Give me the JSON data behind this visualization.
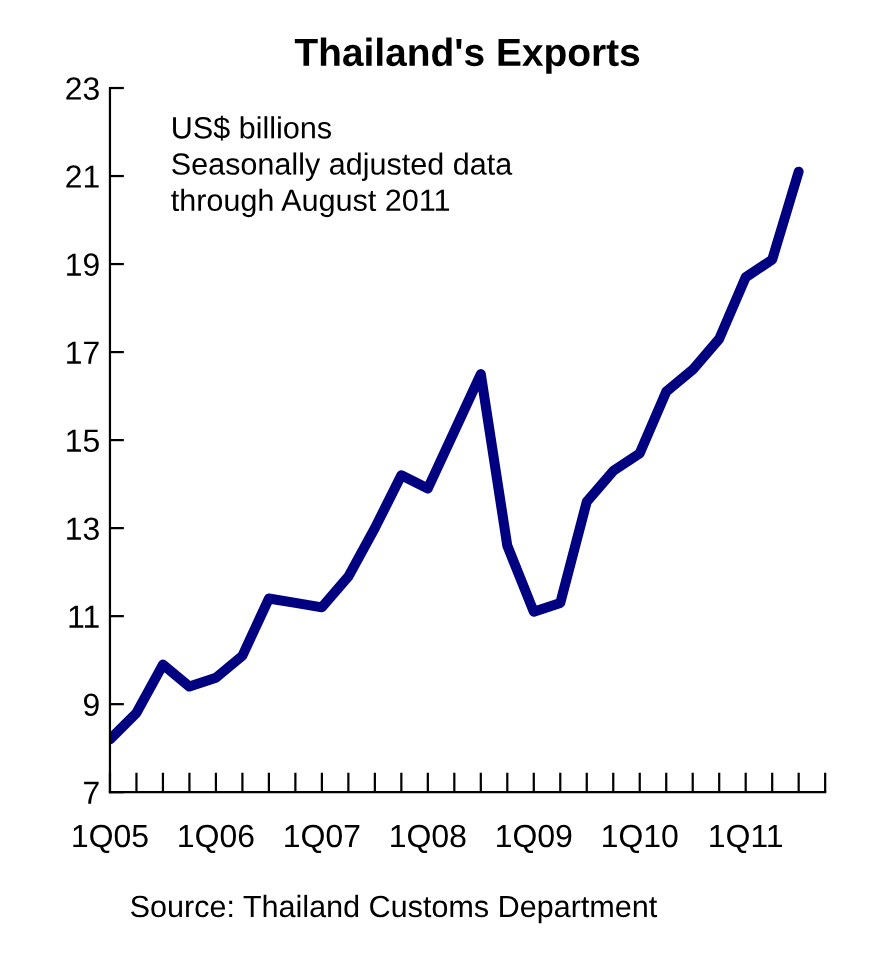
{
  "chart_data": {
    "type": "line",
    "title": "Thailand's Exports",
    "categories": [
      "1Q05",
      null,
      null,
      null,
      "1Q06",
      null,
      null,
      null,
      "1Q07",
      null,
      null,
      null,
      "1Q08",
      null,
      null,
      null,
      "1Q09",
      null,
      null,
      null,
      "1Q10",
      null,
      null,
      null,
      "1Q11",
      null,
      null
    ],
    "series": [
      {
        "color": "#000080",
        "values": [
          8.2,
          8.8,
          9.9,
          9.4,
          9.6,
          10.1,
          11.4,
          11.3,
          11.2,
          11.9,
          13.0,
          14.2,
          13.9,
          15.2,
          16.5,
          12.6,
          11.1,
          11.3,
          13.6,
          14.3,
          14.7,
          16.1,
          16.6,
          17.3,
          18.7,
          19.1,
          21.1
        ]
      }
    ],
    "ylim": [
      7,
      23
    ],
    "yticks": [
      7,
      9,
      11,
      13,
      15,
      17,
      19,
      21,
      23
    ],
    "grid": false,
    "legend": false,
    "marker": "none",
    "line_style": "solid",
    "annotations": [
      "US$ billions\nSeasonally adjusted data\nthrough August 2011",
      "Source: Thailand Customs Department"
    ]
  }
}
